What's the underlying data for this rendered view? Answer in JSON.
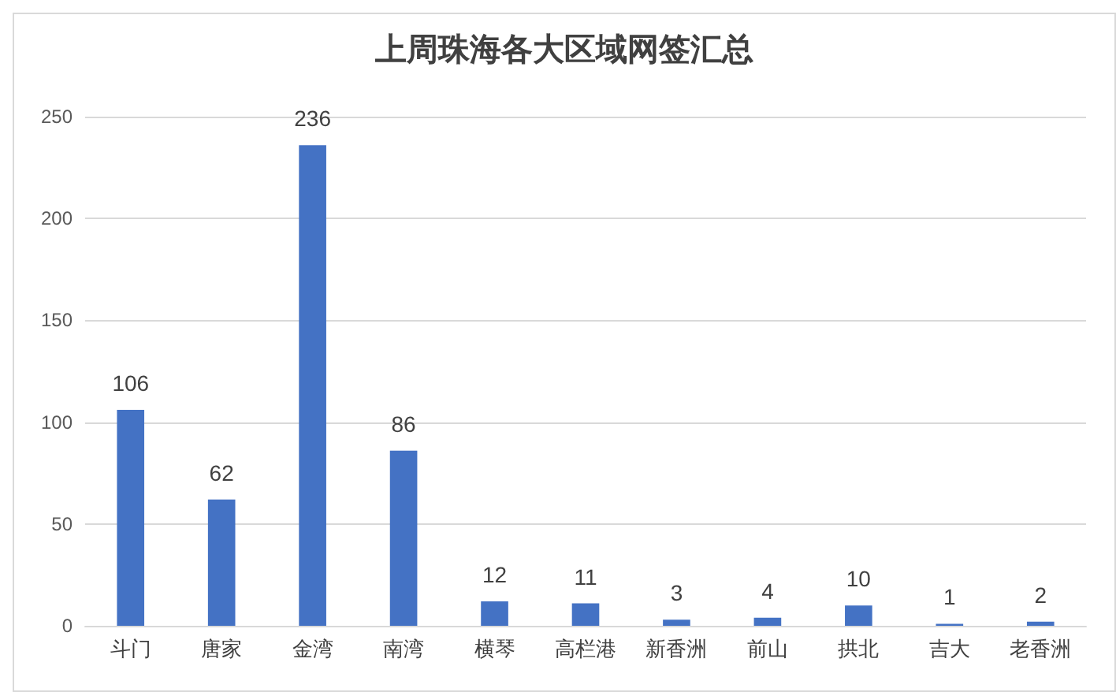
{
  "chart_data": {
    "type": "bar",
    "title": "上周珠海各大区域网签汇总",
    "categories": [
      "斗门",
      "唐家",
      "金湾",
      "南湾",
      "横琴",
      "高栏港",
      "新香洲",
      "前山",
      "拱北",
      "吉大",
      "老香洲"
    ],
    "values": [
      106,
      62,
      236,
      86,
      12,
      11,
      3,
      4,
      10,
      1,
      2
    ],
    "color": "#4472c4",
    "ylim": [
      0,
      250
    ],
    "yticks": [
      0,
      50,
      100,
      150,
      200,
      250
    ],
    "grid": "y",
    "data_labels": true
  }
}
